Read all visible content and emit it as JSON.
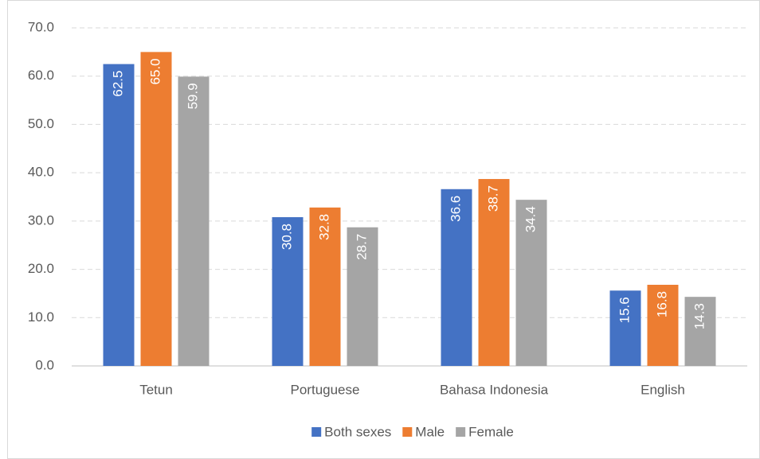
{
  "chart_data": {
    "type": "bar",
    "categories": [
      "Tetun",
      "Portuguese",
      "Bahasa Indonesia",
      "English"
    ],
    "series": [
      {
        "name": "Both sexes",
        "color": "#4472c4",
        "values": [
          62.5,
          30.8,
          36.6,
          15.6
        ],
        "value_labels": [
          "62.5",
          "30.8",
          "36.6",
          "15.6"
        ]
      },
      {
        "name": "Male",
        "color": "#ed7d31",
        "values": [
          65.0,
          32.8,
          38.7,
          16.8
        ],
        "value_labels": [
          "65.0",
          "32.8",
          "38.7",
          "16.8"
        ]
      },
      {
        "name": "Female",
        "color": "#a5a5a5",
        "values": [
          59.9,
          28.7,
          34.4,
          14.3
        ],
        "value_labels": [
          "59.9",
          "28.7",
          "34.4",
          "14.3"
        ]
      }
    ],
    "ylim": [
      0,
      70
    ],
    "yticks": [
      {
        "value": 0,
        "label": "0.0"
      },
      {
        "value": 10,
        "label": "10.0"
      },
      {
        "value": 20,
        "label": "20.0"
      },
      {
        "value": 30,
        "label": "30.0"
      },
      {
        "value": 40,
        "label": "40.0"
      },
      {
        "value": 50,
        "label": "50.0"
      },
      {
        "value": 60,
        "label": "60.0"
      },
      {
        "value": 70,
        "label": "70.0"
      }
    ],
    "grid": true,
    "legend": "bottom"
  }
}
